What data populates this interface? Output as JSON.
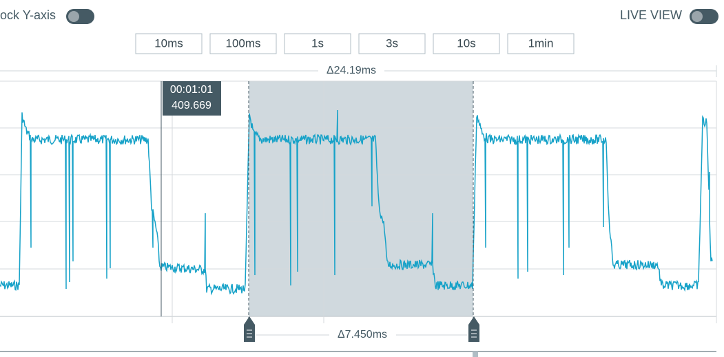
{
  "header": {
    "lock_y_axis": "Lock Y-axis",
    "live_view": "LIVE VIEW"
  },
  "time_buttons": [
    "10ms",
    "100ms",
    "1s",
    "3s",
    "10s",
    "1min"
  ],
  "window_delta": "Δ24.19ms",
  "tooltip": {
    "time": "00:01:01",
    "value": "409.669"
  },
  "selection_delta": "Δ7.450ms"
}
